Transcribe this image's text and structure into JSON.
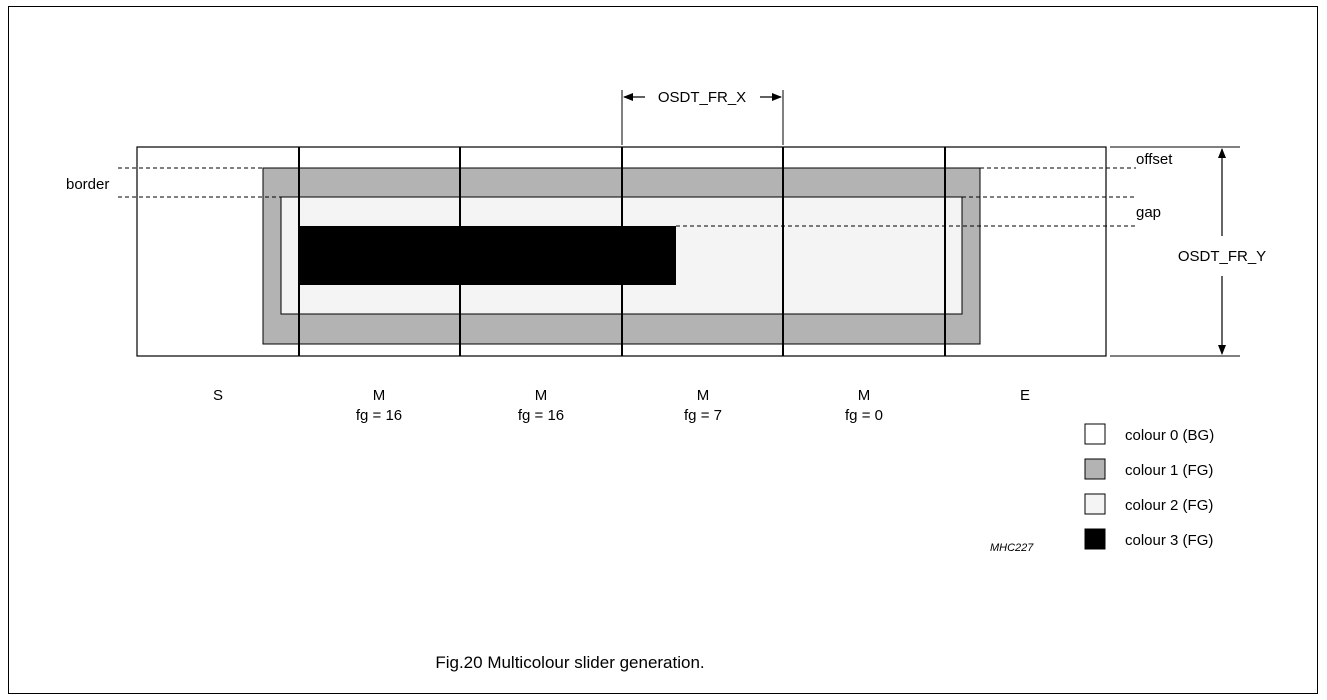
{
  "dimension_labels": {
    "width": "OSDT_FR_X",
    "height": "OSDT_FR_Y",
    "offset": "offset",
    "gap": "gap",
    "border": "border"
  },
  "cells": [
    {
      "type": "S",
      "fg": ""
    },
    {
      "type": "M",
      "fg": "fg = 16"
    },
    {
      "type": "M",
      "fg": "fg = 16"
    },
    {
      "type": "M",
      "fg": "fg = 7"
    },
    {
      "type": "M",
      "fg": "fg = 0"
    },
    {
      "type": "E",
      "fg": ""
    }
  ],
  "legend": [
    {
      "label": "colour 0 (BG)",
      "color": "#ffffff"
    },
    {
      "label": "colour 1 (FG)",
      "color": "#b3b3b3"
    },
    {
      "label": "colour 2 (FG)",
      "color": "#f4f4f4"
    },
    {
      "label": "colour 3 (FG)",
      "color": "#000000"
    }
  ],
  "figure_id": "MHC227",
  "caption": "Fig.20  Multicolour slider generation."
}
